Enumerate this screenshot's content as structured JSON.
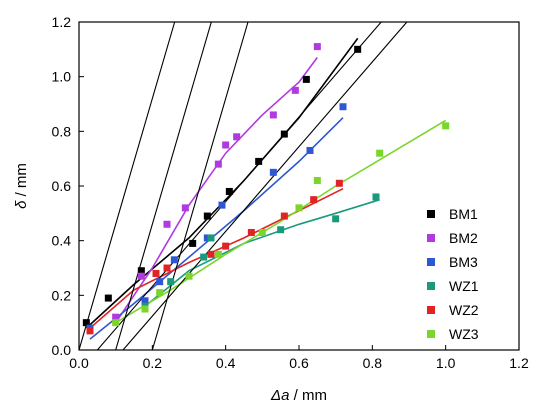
{
  "chart_data": {
    "type": "scatter",
    "title": "",
    "xlabel_symbol": "Δa",
    "xlabel_unit": " / mm",
    "ylabel_symbol": "δ",
    "ylabel_unit": " / mm",
    "xlim": [
      0,
      1.2
    ],
    "ylim": [
      0,
      1.2
    ],
    "xticks": [
      "0.0",
      "0.2",
      "0.4",
      "0.6",
      "0.8",
      "1.0",
      "1.2"
    ],
    "yticks": [
      "0.0",
      "0.2",
      "0.4",
      "0.6",
      "0.8",
      "1.0",
      "1.2"
    ],
    "grid": false,
    "legend_position": "right",
    "series": [
      {
        "name": "BM1",
        "color": "#000000",
        "points": [
          [
            0.02,
            0.1
          ],
          [
            0.08,
            0.19
          ],
          [
            0.17,
            0.29
          ],
          [
            0.31,
            0.39
          ],
          [
            0.35,
            0.49
          ],
          [
            0.41,
            0.58
          ],
          [
            0.49,
            0.69
          ],
          [
            0.56,
            0.79
          ],
          [
            0.62,
            0.99
          ],
          [
            0.76,
            1.1
          ]
        ],
        "fit": [
          [
            0.02,
            0.08
          ],
          [
            0.15,
            0.24
          ],
          [
            0.3,
            0.41
          ],
          [
            0.45,
            0.62
          ],
          [
            0.6,
            0.85
          ],
          [
            0.76,
            1.14
          ]
        ]
      },
      {
        "name": "BM2",
        "color": "#b03adf",
        "points": [
          [
            0.1,
            0.12
          ],
          [
            0.17,
            0.27
          ],
          [
            0.24,
            0.46
          ],
          [
            0.29,
            0.52
          ],
          [
            0.38,
            0.68
          ],
          [
            0.4,
            0.75
          ],
          [
            0.43,
            0.78
          ],
          [
            0.53,
            0.86
          ],
          [
            0.59,
            0.95
          ],
          [
            0.65,
            1.11
          ]
        ],
        "fit": [
          [
            0.1,
            0.1
          ],
          [
            0.2,
            0.3
          ],
          [
            0.3,
            0.53
          ],
          [
            0.4,
            0.72
          ],
          [
            0.5,
            0.86
          ],
          [
            0.6,
            0.98
          ],
          [
            0.65,
            1.07
          ]
        ]
      },
      {
        "name": "BM3",
        "color": "#2f57d3",
        "points": [
          [
            0.03,
            0.08
          ],
          [
            0.18,
            0.18
          ],
          [
            0.22,
            0.25
          ],
          [
            0.26,
            0.33
          ],
          [
            0.35,
            0.41
          ],
          [
            0.39,
            0.53
          ],
          [
            0.53,
            0.65
          ],
          [
            0.63,
            0.73
          ],
          [
            0.72,
            0.89
          ]
        ],
        "fit": [
          [
            0.03,
            0.04
          ],
          [
            0.15,
            0.17
          ],
          [
            0.3,
            0.34
          ],
          [
            0.45,
            0.51
          ],
          [
            0.6,
            0.69
          ],
          [
            0.72,
            0.85
          ]
        ]
      },
      {
        "name": "WZ1",
        "color": "#1a9a7a",
        "points": [
          [
            0.18,
            0.16
          ],
          [
            0.25,
            0.25
          ],
          [
            0.34,
            0.34
          ],
          [
            0.36,
            0.41
          ],
          [
            0.55,
            0.44
          ],
          [
            0.7,
            0.48
          ],
          [
            0.81,
            0.56
          ]
        ],
        "fit": [
          [
            0.18,
            0.16
          ],
          [
            0.3,
            0.29
          ],
          [
            0.45,
            0.39
          ],
          [
            0.6,
            0.46
          ],
          [
            0.7,
            0.5
          ],
          [
            0.82,
            0.55
          ]
        ]
      },
      {
        "name": "WZ2",
        "color": "#e02424",
        "points": [
          [
            0.03,
            0.07
          ],
          [
            0.21,
            0.28
          ],
          [
            0.24,
            0.3
          ],
          [
            0.36,
            0.35
          ],
          [
            0.4,
            0.38
          ],
          [
            0.47,
            0.43
          ],
          [
            0.56,
            0.49
          ],
          [
            0.64,
            0.55
          ],
          [
            0.71,
            0.61
          ]
        ],
        "fit": [
          [
            0.03,
            0.08
          ],
          [
            0.15,
            0.22
          ],
          [
            0.3,
            0.32
          ],
          [
            0.45,
            0.41
          ],
          [
            0.6,
            0.51
          ],
          [
            0.72,
            0.59
          ]
        ]
      },
      {
        "name": "WZ3",
        "color": "#7ad62a",
        "points": [
          [
            0.1,
            0.1
          ],
          [
            0.18,
            0.15
          ],
          [
            0.22,
            0.21
          ],
          [
            0.3,
            0.27
          ],
          [
            0.38,
            0.35
          ],
          [
            0.5,
            0.43
          ],
          [
            0.6,
            0.52
          ],
          [
            0.65,
            0.62
          ],
          [
            0.82,
            0.72
          ],
          [
            1.0,
            0.82
          ]
        ],
        "fit": [
          [
            0.1,
            0.1
          ],
          [
            0.25,
            0.22
          ],
          [
            0.4,
            0.35
          ],
          [
            0.55,
            0.47
          ],
          [
            0.7,
            0.6
          ],
          [
            0.85,
            0.72
          ],
          [
            1.0,
            0.84
          ]
        ]
      }
    ],
    "blunting_lines": [
      {
        "x0": 0.0,
        "slope": 4.6
      },
      {
        "x0": 0.1,
        "slope": 4.6
      },
      {
        "x0": 0.2,
        "slope": 4.6
      },
      {
        "x0": 0.05,
        "slope": 1.55
      },
      {
        "x0": 0.12,
        "slope": 1.55
      }
    ]
  }
}
